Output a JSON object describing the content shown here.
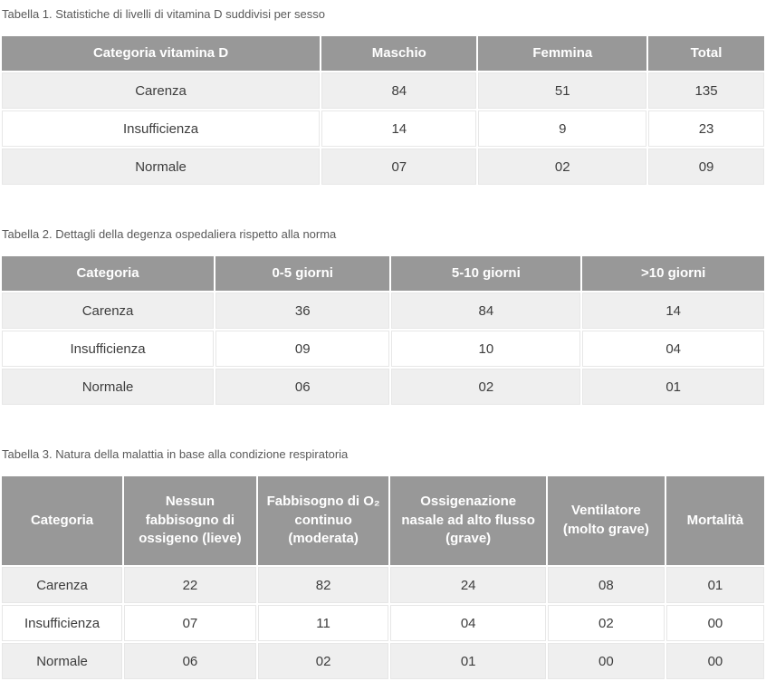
{
  "colors": {
    "header_bg": "#989898",
    "header_text": "#ffffff",
    "row_alt_bg": "#efefef",
    "row_bg": "#ffffff",
    "body_text": "#3d3d3d",
    "caption_text": "#595959",
    "cell_border": "#e7e7e7"
  },
  "tables": [
    {
      "caption": "Tabella 1. Statistiche di livelli di vitamina D suddivisi per sesso",
      "columns": [
        "Categoria vitamina D",
        "Maschio",
        "Femmina",
        "Total"
      ],
      "rows": [
        [
          "Carenza",
          "84",
          "51",
          "135"
        ],
        [
          "Insufficienza",
          "14",
          "9",
          "23"
        ],
        [
          "Normale",
          "07",
          "02",
          "09"
        ]
      ]
    },
    {
      "caption": "Tabella 2. Dettagli della degenza ospedaliera rispetto alla norma",
      "columns": [
        "Categoria",
        "0-5 giorni",
        "5-10 giorni",
        ">10 giorni"
      ],
      "rows": [
        [
          "Carenza",
          "36",
          "84",
          "14"
        ],
        [
          "Insufficienza",
          "09",
          "10",
          "04"
        ],
        [
          "Normale",
          "06",
          "02",
          "01"
        ]
      ]
    },
    {
      "caption": "Tabella 3. Natura della malattia in base alla condizione respiratoria",
      "columns": [
        "Categoria",
        "Nessun fabbisogno di ossigeno (lieve)",
        "Fabbisogno di O₂ continuo (moderata)",
        "Ossigenazione nasale ad alto flusso (grave)",
        "Ventilatore (molto grave)",
        "Mortalità"
      ],
      "rows": [
        [
          "Carenza",
          "22",
          "82",
          "24",
          "08",
          "01"
        ],
        [
          "Insufficienza",
          "07",
          "11",
          "04",
          "02",
          "00"
        ],
        [
          "Normale",
          "06",
          "02",
          "01",
          "00",
          "00"
        ]
      ]
    }
  ]
}
